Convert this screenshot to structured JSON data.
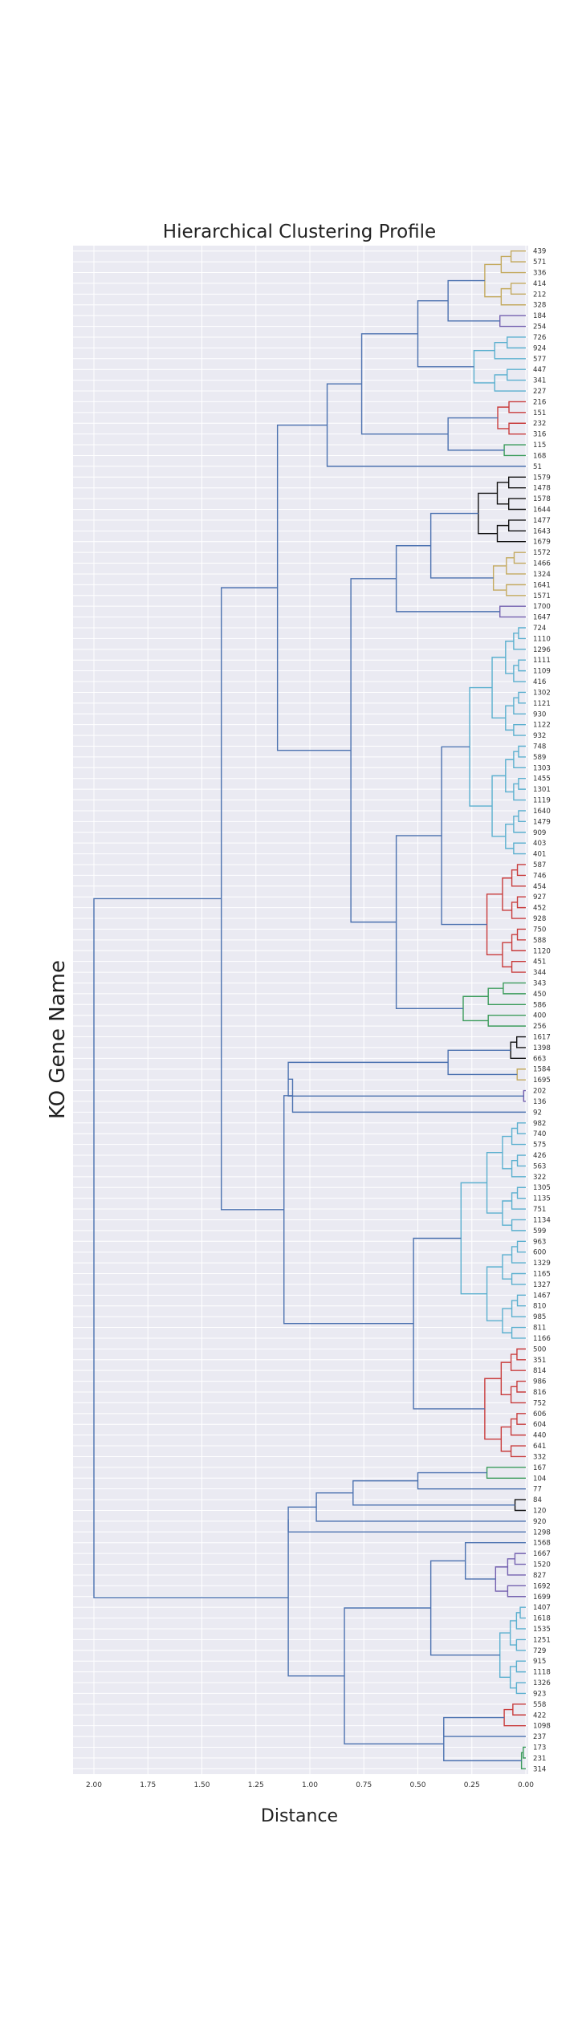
{
  "chart_data": {
    "type": "dendrogram",
    "orientation": "left",
    "title": "Hierarchical Clustering Profile",
    "xlabel": "Distance",
    "ylabel": "KO Gene Name",
    "xlim": [
      2.1,
      0.0
    ],
    "xticks": [
      "2.00",
      "1.75",
      "1.50",
      "1.25",
      "1.00",
      "0.75",
      "0.50",
      "0.25",
      "0.00"
    ],
    "grid": true,
    "leaves": [
      "439",
      "571",
      "336",
      "414",
      "212",
      "328",
      "184",
      "254",
      "726",
      "924",
      "577",
      "447",
      "341",
      "227",
      "216",
      "151",
      "232",
      "316",
      "115",
      "168",
      "51",
      "1579",
      "1478",
      "1578",
      "1644",
      "1477",
      "1643",
      "1679",
      "1572",
      "1466",
      "1324",
      "1641",
      "1571",
      "1700",
      "1647",
      "724",
      "1110",
      "1296",
      "1111",
      "1109",
      "416",
      "1302",
      "1121",
      "930",
      "1122",
      "932",
      "748",
      "589",
      "1303",
      "1455",
      "1301",
      "1119",
      "1640",
      "1479",
      "909",
      "403",
      "401",
      "587",
      "746",
      "454",
      "927",
      "452",
      "928",
      "750",
      "588",
      "1120",
      "451",
      "344",
      "343",
      "450",
      "586",
      "400",
      "256",
      "1617",
      "1398",
      "663",
      "1584",
      "1695",
      "202",
      "136",
      "92",
      "982",
      "740",
      "575",
      "426",
      "563",
      "322",
      "1305",
      "1135",
      "751",
      "1134",
      "599",
      "963",
      "600",
      "1329",
      "1165",
      "1327",
      "1467",
      "810",
      "985",
      "811",
      "1166",
      "500",
      "351",
      "814",
      "986",
      "816",
      "752",
      "606",
      "604",
      "440",
      "641",
      "332",
      "167",
      "104",
      "77",
      "84",
      "120",
      "920",
      "1298",
      "1568",
      "1667",
      "1520",
      "827",
      "1692",
      "1699",
      "1407",
      "1618",
      "1535",
      "1251",
      "729",
      "915",
      "1118",
      "1326",
      "923",
      "558",
      "422",
      "1098",
      "237",
      "173",
      "231",
      "314"
    ],
    "clusters": [
      {
        "color": "#c4aa5f",
        "leaves": [
          "439",
          "571",
          "336",
          "414",
          "212",
          "328"
        ]
      },
      {
        "color": "#7461b0",
        "leaves": [
          "184",
          "254"
        ]
      },
      {
        "color": "#5bb0cf",
        "leaves": [
          "726",
          "924",
          "577",
          "447",
          "341",
          "227"
        ]
      },
      {
        "color": "#c93c3c",
        "leaves": [
          "216",
          "151",
          "232",
          "316"
        ]
      },
      {
        "color": "#3b9c5b",
        "leaves": [
          "115",
          "168"
        ]
      },
      {
        "color": "#111111",
        "leaves": [
          "1579",
          "1478",
          "1578",
          "1644",
          "1477",
          "1643",
          "1679"
        ]
      },
      {
        "color": "#c4aa5f",
        "leaves": [
          "1572",
          "1466",
          "1324",
          "1641",
          "1571"
        ]
      },
      {
        "color": "#7461b0",
        "leaves": [
          "1700",
          "1647"
        ]
      },
      {
        "color": "#5bb0cf",
        "leaves": [
          "724",
          "1110",
          "1296",
          "1111",
          "1109",
          "416",
          "1302",
          "1121",
          "930",
          "1122",
          "932",
          "748",
          "589",
          "1303",
          "1455",
          "1301",
          "1119",
          "1640",
          "1479",
          "909",
          "403",
          "401"
        ]
      },
      {
        "color": "#c93c3c",
        "leaves": [
          "587",
          "746",
          "454",
          "927",
          "452",
          "928",
          "750",
          "588",
          "1120",
          "451",
          "344"
        ]
      },
      {
        "color": "#3b9c5b",
        "leaves": [
          "343",
          "450",
          "586",
          "400",
          "256"
        ]
      },
      {
        "color": "#111111",
        "leaves": [
          "1617",
          "1398",
          "663"
        ]
      },
      {
        "color": "#c4aa5f",
        "leaves": [
          "1584",
          "1695"
        ]
      },
      {
        "color": "#7461b0",
        "leaves": [
          "202",
          "136"
        ]
      },
      {
        "color": "#5bb0cf",
        "leaves": [
          "982",
          "740",
          "575",
          "426",
          "563",
          "322",
          "1305",
          "1135",
          "751",
          "1134",
          "599",
          "963",
          "600",
          "1329",
          "1165",
          "1327",
          "1467",
          "810",
          "985",
          "811",
          "1166"
        ]
      },
      {
        "color": "#c93c3c",
        "leaves": [
          "500",
          "351",
          "814",
          "986",
          "816",
          "752",
          "606",
          "604",
          "440",
          "641",
          "332"
        ]
      },
      {
        "color": "#3b9c5b",
        "leaves": [
          "167",
          "104"
        ]
      },
      {
        "color": "#111111",
        "leaves": [
          "84",
          "120"
        ]
      },
      {
        "color": "#7461b0",
        "leaves": [
          "1667",
          "1520",
          "827",
          "1692",
          "1699"
        ]
      },
      {
        "color": "#5bb0cf",
        "leaves": [
          "1407",
          "1618",
          "1535",
          "1251",
          "729",
          "915",
          "1118",
          "1326",
          "923"
        ]
      },
      {
        "color": "#c93c3c",
        "leaves": [
          "558",
          "422",
          "1098"
        ]
      },
      {
        "color": "#3b9c5b",
        "leaves": [
          "173",
          "231",
          "314"
        ]
      }
    ],
    "link_color": "#4c72b0",
    "background": "#eaeaf2"
  }
}
